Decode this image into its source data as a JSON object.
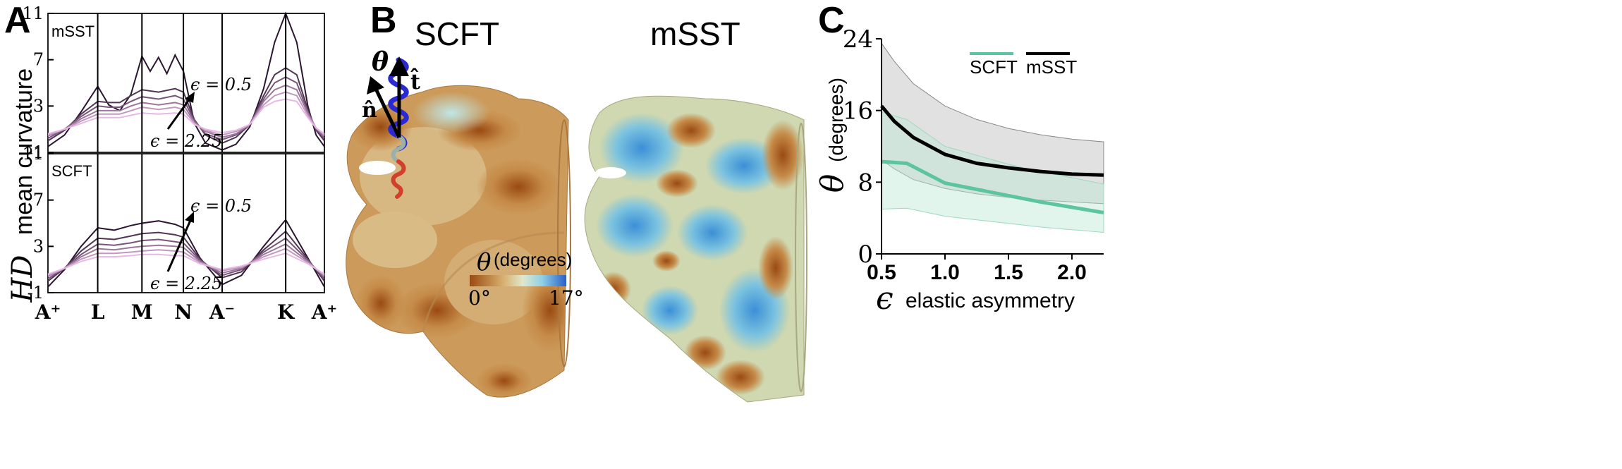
{
  "panels": {
    "A": {
      "letter": "A",
      "ylabel_math": "HD",
      "ylabel_text": "mean curvature",
      "top_label": "mSST",
      "bottom_label": "SCFT",
      "eps_top": "ϵ = 0.5",
      "eps_bottom": "ϵ = 2.25",
      "yticks": [
        "11",
        "7",
        "3",
        "-1"
      ],
      "xticks": [
        "A⁺",
        "L",
        "M",
        "N",
        "A⁻",
        "K",
        "A⁺"
      ]
    },
    "B": {
      "letter": "B",
      "left_title": "SCFT",
      "right_title": "mSST",
      "theta": "θ",
      "t_hat": "t̂",
      "n_hat": "n̂",
      "colorbar_label_sym": "θ",
      "colorbar_label_unit": "(degrees)",
      "colorbar_min": "0°",
      "colorbar_max": "17°"
    },
    "C": {
      "letter": "C",
      "ylabel_sym": "θ",
      "ylabel_unit": "(degrees)",
      "xlabel_sym": "ϵ",
      "xlabel_text": "elastic asymmetry"
    }
  },
  "colors": {
    "scft": "#5cc4a0",
    "msst": "#000000",
    "curve_dark": "#2b1530",
    "curve_light": "#e8b8e4",
    "cmap_low": "#9a4a10",
    "cmap_mid": "#dfe6c8",
    "cmap_high": "#2a6fcf"
  },
  "chart_data": [
    {
      "type": "line",
      "panel": "A-top",
      "label": "mSST",
      "ylabel": "HD mean curvature",
      "ylim": [
        -1,
        11
      ],
      "yticks": [
        -1,
        3,
        7,
        11
      ],
      "categories": [
        "A⁺",
        "L",
        "M",
        "N",
        "A⁻",
        "K",
        "A⁺"
      ],
      "x_positions": [
        0,
        0.18,
        0.34,
        0.49,
        0.63,
        0.86,
        1.0
      ],
      "series": [
        {
          "x": [
            0,
            0.06,
            0.12,
            0.18,
            0.22,
            0.26,
            0.3,
            0.34,
            0.37,
            0.4,
            0.43,
            0.46,
            0.49,
            0.53,
            0.57,
            0.63,
            0.68,
            0.73,
            0.78,
            0.82,
            0.86,
            0.9,
            0.94,
            0.97,
            1.0
          ],
          "values": [
            -0.5,
            0.5,
            2.5,
            4.7,
            3.1,
            2.6,
            4.0,
            7.3,
            6.0,
            7.2,
            5.8,
            7.4,
            6.0,
            1.5,
            -0.2,
            -0.8,
            -0.3,
            1.2,
            4.5,
            8.5,
            11.0,
            8.5,
            3.0,
            0.5,
            -0.5
          ]
        },
        {
          "x": [
            0,
            0.06,
            0.12,
            0.18,
            0.22,
            0.26,
            0.3,
            0.34,
            0.4,
            0.46,
            0.49,
            0.53,
            0.57,
            0.63,
            0.68,
            0.73,
            0.78,
            0.82,
            0.86,
            0.9,
            0.94,
            0.97,
            1.0
          ],
          "values": [
            0,
            0.9,
            2.3,
            3.4,
            3.3,
            3.3,
            3.9,
            4.4,
            4.2,
            4.5,
            4.2,
            1.8,
            0.5,
            -0.2,
            0.3,
            1.4,
            3.9,
            5.7,
            6.3,
            5.7,
            2.7,
            0.9,
            0
          ]
        },
        {
          "x": [
            0,
            0.06,
            0.12,
            0.18,
            0.22,
            0.26,
            0.3,
            0.34,
            0.4,
            0.46,
            0.49,
            0.53,
            0.57,
            0.63,
            0.68,
            0.73,
            0.78,
            0.82,
            0.86,
            0.9,
            0.94,
            0.97,
            1.0
          ],
          "values": [
            0.2,
            1.0,
            2.1,
            3.0,
            2.9,
            2.9,
            3.4,
            3.8,
            3.6,
            3.9,
            3.6,
            1.7,
            0.6,
            0.1,
            0.5,
            1.4,
            3.6,
            5.0,
            5.5,
            5.0,
            2.5,
            1.0,
            0.2
          ]
        },
        {
          "x": [
            0,
            0.06,
            0.12,
            0.18,
            0.22,
            0.26,
            0.3,
            0.34,
            0.4,
            0.46,
            0.49,
            0.53,
            0.57,
            0.63,
            0.68,
            0.73,
            0.78,
            0.82,
            0.86,
            0.9,
            0.94,
            0.97,
            1.0
          ],
          "values": [
            0.4,
            1.0,
            1.9,
            2.6,
            2.6,
            2.6,
            3.0,
            3.3,
            3.1,
            3.3,
            3.1,
            1.6,
            0.8,
            0.3,
            0.6,
            1.4,
            3.4,
            4.4,
            4.8,
            4.4,
            2.4,
            1.1,
            0.4
          ]
        },
        {
          "x": [
            0,
            0.06,
            0.12,
            0.18,
            0.22,
            0.26,
            0.3,
            0.34,
            0.4,
            0.46,
            0.49,
            0.53,
            0.57,
            0.63,
            0.68,
            0.73,
            0.78,
            0.82,
            0.86,
            0.9,
            0.94,
            0.97,
            1.0
          ],
          "values": [
            0.5,
            1.0,
            1.7,
            2.3,
            2.3,
            2.3,
            2.6,
            2.9,
            2.7,
            2.9,
            2.7,
            1.5,
            0.9,
            0.5,
            0.8,
            1.4,
            3.1,
            3.9,
            4.2,
            3.9,
            2.2,
            1.1,
            0.5
          ]
        },
        {
          "x": [
            0,
            0.06,
            0.12,
            0.18,
            0.22,
            0.26,
            0.3,
            0.34,
            0.4,
            0.46,
            0.49,
            0.53,
            0.57,
            0.63,
            0.68,
            0.73,
            0.78,
            0.82,
            0.86,
            0.9,
            0.94,
            0.97,
            1.0
          ],
          "values": [
            0.6,
            1.0,
            1.5,
            2.0,
            2.0,
            2.0,
            2.2,
            2.4,
            2.3,
            2.4,
            2.3,
            1.4,
            1.0,
            0.7,
            0.9,
            1.4,
            2.9,
            3.4,
            3.6,
            3.4,
            2.0,
            1.1,
            0.6
          ]
        }
      ]
    },
    {
      "type": "line",
      "panel": "A-bottom",
      "label": "SCFT",
      "ylim": [
        -1,
        11
      ],
      "yticks": [
        -1,
        3,
        7,
        11
      ],
      "categories": [
        "A⁺",
        "L",
        "M",
        "N",
        "A⁻",
        "K",
        "A⁺"
      ],
      "x_positions": [
        0,
        0.18,
        0.34,
        0.49,
        0.63,
        0.86,
        1.0
      ],
      "series": [
        {
          "x": [
            0,
            0.06,
            0.12,
            0.18,
            0.24,
            0.3,
            0.34,
            0.4,
            0.46,
            0.49,
            0.55,
            0.63,
            0.7,
            0.78,
            0.86,
            0.94,
            1.0
          ],
          "values": [
            -0.5,
            1.0,
            3.0,
            4.6,
            4.4,
            4.8,
            5.0,
            5.2,
            4.9,
            4.6,
            2.0,
            -0.3,
            0.5,
            3.0,
            5.3,
            2.0,
            -0.5
          ]
        },
        {
          "x": [
            0,
            0.06,
            0.12,
            0.18,
            0.24,
            0.3,
            0.34,
            0.4,
            0.46,
            0.49,
            0.55,
            0.63,
            0.7,
            0.78,
            0.86,
            0.94,
            1.0
          ],
          "values": [
            0,
            1.1,
            2.6,
            3.7,
            3.6,
            3.9,
            4.1,
            4.2,
            4.0,
            3.8,
            1.9,
            0.3,
            0.8,
            2.7,
            4.3,
            1.9,
            0
          ]
        },
        {
          "x": [
            0,
            0.06,
            0.12,
            0.18,
            0.24,
            0.3,
            0.34,
            0.4,
            0.46,
            0.49,
            0.55,
            0.63,
            0.7,
            0.78,
            0.86,
            0.94,
            1.0
          ],
          "values": [
            0.2,
            1.1,
            2.3,
            3.2,
            3.1,
            3.3,
            3.5,
            3.6,
            3.4,
            3.3,
            1.8,
            0.5,
            1.0,
            2.5,
            3.7,
            1.8,
            0.2
          ]
        },
        {
          "x": [
            0,
            0.06,
            0.12,
            0.18,
            0.24,
            0.3,
            0.34,
            0.4,
            0.46,
            0.49,
            0.55,
            0.63,
            0.7,
            0.78,
            0.86,
            0.94,
            1.0
          ],
          "values": [
            0.4,
            1.1,
            2.1,
            2.8,
            2.7,
            2.9,
            3.0,
            3.1,
            3.0,
            2.9,
            1.7,
            0.7,
            1.1,
            2.3,
            3.2,
            1.7,
            0.4
          ]
        },
        {
          "x": [
            0,
            0.06,
            0.12,
            0.18,
            0.24,
            0.3,
            0.34,
            0.4,
            0.46,
            0.49,
            0.55,
            0.63,
            0.7,
            0.78,
            0.86,
            0.94,
            1.0
          ],
          "values": [
            0.5,
            1.1,
            1.9,
            2.4,
            2.4,
            2.5,
            2.6,
            2.7,
            2.6,
            2.5,
            1.6,
            0.9,
            1.2,
            2.1,
            2.8,
            1.6,
            0.5
          ]
        },
        {
          "x": [
            0,
            0.06,
            0.12,
            0.18,
            0.24,
            0.3,
            0.34,
            0.4,
            0.46,
            0.49,
            0.55,
            0.63,
            0.7,
            0.78,
            0.86,
            0.94,
            1.0
          ],
          "values": [
            0.6,
            1.1,
            1.7,
            2.1,
            2.1,
            2.2,
            2.3,
            2.3,
            2.2,
            2.2,
            1.5,
            1.0,
            1.3,
            1.9,
            2.4,
            1.5,
            0.6
          ]
        }
      ]
    },
    {
      "type": "line",
      "panel": "C",
      "xlabel": "ϵ elastic asymmetry",
      "ylabel": "θ (degrees)",
      "xlim": [
        0.5,
        2.25
      ],
      "ylim": [
        0,
        24
      ],
      "xticks": [
        0.5,
        1.0,
        1.5,
        2.0
      ],
      "xtick_labels": [
        "0.5",
        "1.0",
        "1.5",
        "2.0"
      ],
      "yticks": [
        0,
        8,
        16,
        24
      ],
      "legend_position": "top-right",
      "series": [
        {
          "name": "SCFT",
          "x": [
            0.5,
            0.7,
            1.0,
            1.25,
            1.5,
            1.75,
            2.0,
            2.25
          ],
          "values": [
            10.3,
            10.1,
            7.9,
            7.2,
            6.5,
            5.8,
            5.2,
            4.6
          ],
          "lower": [
            5.0,
            5.1,
            4.2,
            3.8,
            3.4,
            3.0,
            2.7,
            2.4
          ],
          "upper": [
            15.8,
            15.0,
            12.0,
            11.0,
            10.0,
            9.2,
            8.5,
            7.8
          ]
        },
        {
          "name": "mSST",
          "x": [
            0.5,
            0.6,
            0.75,
            1.0,
            1.25,
            1.5,
            1.75,
            2.0,
            2.25
          ],
          "values": [
            16.5,
            14.8,
            13.0,
            11.1,
            10.1,
            9.6,
            9.2,
            8.9,
            8.8
          ],
          "lower": [
            10.5,
            9.5,
            8.3,
            7.3,
            6.7,
            6.3,
            6.0,
            5.8,
            5.6
          ],
          "upper": [
            23.5,
            21.5,
            19.0,
            16.5,
            15.0,
            14.0,
            13.3,
            12.8,
            12.5
          ]
        }
      ]
    }
  ]
}
